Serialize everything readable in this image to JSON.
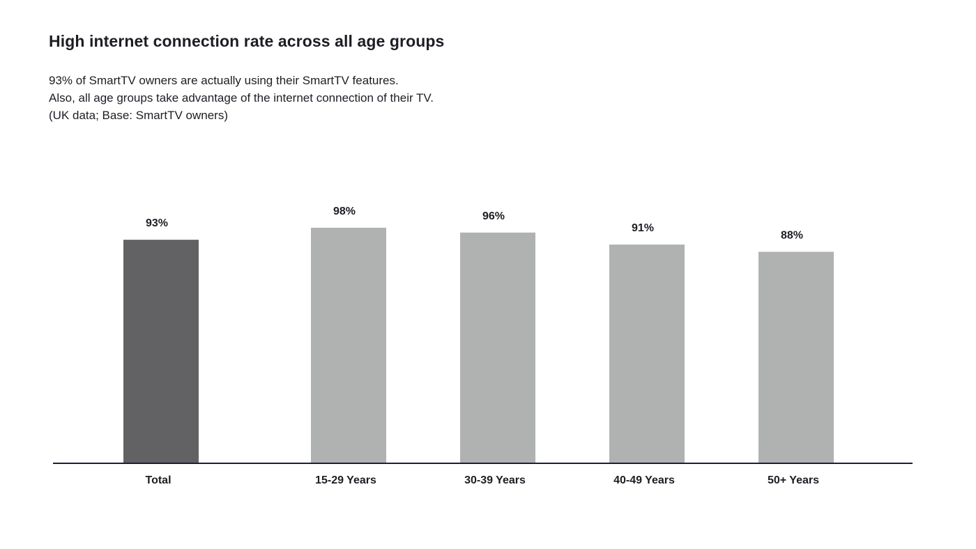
{
  "title": "High internet connection rate across all age groups",
  "subtitle": [
    "93% of SmartTV owners are actually using their SmartTV features.",
    "Also, all age groups take advantage of the internet connection of their TV.",
    "(UK data; Base: SmartTV owners)"
  ],
  "chart_data": {
    "type": "bar",
    "categories": [
      "Total",
      "15-29 Years",
      "30-39 Years",
      "40-49 Years",
      "50+ Years"
    ],
    "values": [
      93,
      98,
      96,
      91,
      88
    ],
    "value_labels": [
      "93%",
      "98%",
      "96%",
      "91%",
      "88%"
    ],
    "unit": "%",
    "grid": false,
    "legend": "none",
    "colors": {
      "highlight": "#626264",
      "default": "#b0b1b1",
      "axis": "#1d1d33",
      "text": "#1d1d24"
    },
    "highlight_index": 0
  }
}
